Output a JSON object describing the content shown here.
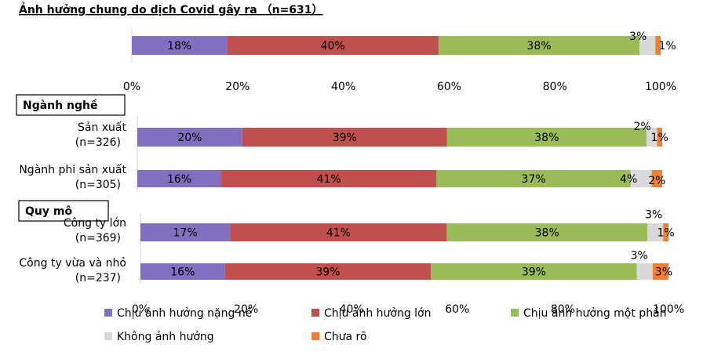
{
  "title": "Ảnh hưởng chung do dịch Covid gây ra （n=631）",
  "colors": [
    "#8170c0",
    "#c0504d",
    "#9bbb59",
    "#d9d9d9",
    "#f07f33"
  ],
  "chart_data": [
    {
      "type": "bar",
      "orientation": "horizontal",
      "stacked": "percent",
      "title": "Ảnh hưởng chung do dịch Covid gây ra （n=631）",
      "categories": [
        ""
      ],
      "series": [
        {
          "name": "Chịu ảnh hưởng nặng nề",
          "values": [
            18
          ]
        },
        {
          "name": "Chịu ảnh hưởng lớn",
          "values": [
            40
          ]
        },
        {
          "name": "Chịu ảnh hưởng một phần",
          "values": [
            38
          ]
        },
        {
          "name": "Không ảnh hưởng",
          "values": [
            3
          ]
        },
        {
          "name": "Chưa rõ",
          "values": [
            1
          ]
        }
      ],
      "xlim": [
        0,
        100
      ],
      "xticks": [
        "0%",
        "20%",
        "40%",
        "60%",
        "80%",
        "100%"
      ]
    },
    {
      "type": "bar",
      "orientation": "horizontal",
      "stacked": "percent",
      "group_label": "Ngành nghề",
      "categories": [
        "Sản xuất",
        "Ngành phi sản xuất"
      ],
      "category_sublabels": [
        "(n=326)",
        "(n=305)"
      ],
      "series": [
        {
          "name": "Chịu ảnh hưởng nặng nề",
          "values": [
            20,
            16
          ]
        },
        {
          "name": "Chịu ảnh hưởng lớn",
          "values": [
            39,
            41
          ]
        },
        {
          "name": "Chịu ảnh hưởng một phần",
          "values": [
            38,
            37
          ]
        },
        {
          "name": "Không ảnh hưởng",
          "values": [
            2,
            4
          ]
        },
        {
          "name": "Chưa rõ",
          "values": [
            1,
            2
          ]
        }
      ],
      "xlim": [
        0,
        100
      ]
    },
    {
      "type": "bar",
      "orientation": "horizontal",
      "stacked": "percent",
      "group_label": "Quy mô",
      "categories": [
        "Công ty lớn",
        "Công ty vừa và nhỏ"
      ],
      "category_sublabels": [
        "(n=369)",
        "(n=237)"
      ],
      "series": [
        {
          "name": "Chịu ảnh hưởng nặng nề",
          "values": [
            17,
            16
          ]
        },
        {
          "name": "Chịu ảnh hưởng lớn",
          "values": [
            41,
            39
          ]
        },
        {
          "name": "Chịu ảnh hưởng một phần",
          "values": [
            38,
            39
          ]
        },
        {
          "name": "Không ảnh hưởng",
          "values": [
            3,
            3
          ]
        },
        {
          "name": "Chưa rõ",
          "values": [
            1,
            3
          ]
        }
      ],
      "xlim": [
        0,
        100
      ],
      "xticks": [
        "0%",
        "20%",
        "40%",
        "60%",
        "80%",
        "100%"
      ]
    }
  ],
  "legend": [
    {
      "name": "Chịu ảnh hưởng nặng nề",
      "color": "#8170c0"
    },
    {
      "name": "Chịu ảnh hưởng lớn",
      "color": "#c0504d"
    },
    {
      "name": "Chịu ảnh hưởng một phần",
      "color": "#9bbb59"
    },
    {
      "name": "Không ảnh hưởng",
      "color": "#d9d9d9"
    },
    {
      "name": "Chưa rõ",
      "color": "#f07f33"
    }
  ]
}
